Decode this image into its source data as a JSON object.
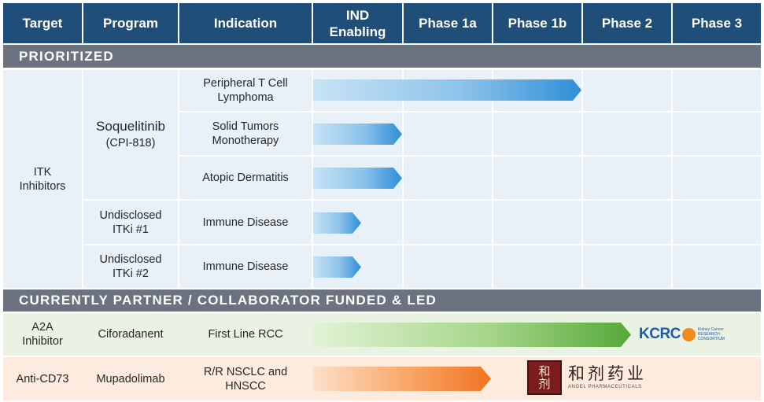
{
  "headers": [
    "Target",
    "Program",
    "Indication",
    "IND Enabling",
    "Phase 1a",
    "Phase 1b",
    "Phase 2",
    "Phase 3"
  ],
  "sections": {
    "prioritized": "PRIORITIZED",
    "partner": "CURRENTLY PARTNER / COLLABORATOR FUNDED & LED"
  },
  "prioritized": {
    "target": "ITK Inhibitors",
    "programs": [
      {
        "name": "Soquelitinib",
        "code": "(CPI-818)"
      },
      {
        "name": "Undisclosed ITKi #1"
      },
      {
        "name": "Undisclosed ITKi #2"
      }
    ],
    "rows": [
      {
        "indication": "Peripheral T Cell Lymphoma",
        "progress": "Phase 1b"
      },
      {
        "indication": "Solid Tumors Monotherapy",
        "progress": "IND Enabling"
      },
      {
        "indication": "Atopic Dermatitis",
        "progress": "IND Enabling"
      },
      {
        "indication": "Immune Disease",
        "progress": "IND Enabling (partial)"
      },
      {
        "indication": "Immune Disease",
        "progress": "IND Enabling (partial)"
      }
    ]
  },
  "partner": {
    "rows": [
      {
        "target": "A2A Inhibitor",
        "program": "Ciforadanent",
        "indication": "First Line RCC",
        "progress": "Phase 2 (partial)",
        "partner_logo": {
          "text": "KCRC",
          "sub": [
            "Kidney Cancer",
            "RESEARCH",
            "CONSORTIUM"
          ]
        }
      },
      {
        "target": "Anti-CD73",
        "program": "Mupadolimab",
        "indication": "R/R NSCLC and HNSCC",
        "progress": "Phase 1a",
        "partner_logo": {
          "seal": "和剂",
          "cn": "和剂药业",
          "en": "ANGEL PHARMACEUTICALS"
        }
      }
    ]
  },
  "colors": {
    "header": "#1f4e79",
    "section": "#6b7380",
    "prioritized_bg": "#e8f1f8",
    "a2a_bg": "#eaf3e3",
    "cd73_bg": "#fdebdf",
    "kcrc_blue": "#1f5aa6",
    "kcrc_orange": "#f08a1c",
    "seal_red": "#7a1d1d"
  }
}
